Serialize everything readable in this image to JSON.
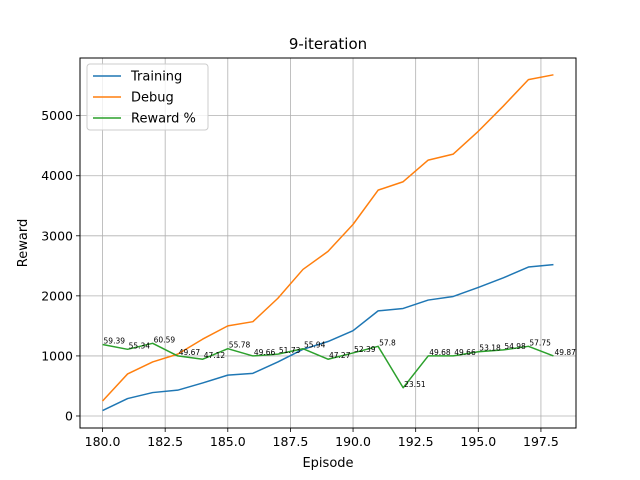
{
  "chart_data": {
    "type": "line",
    "title": "9-iteration",
    "xlabel": "Episode",
    "ylabel": "Reward",
    "xlim": [
      179.1,
      198.9
    ],
    "ylim": [
      -200,
      5960
    ],
    "xticks": [
      180,
      182.5,
      185,
      187.5,
      190,
      192.5,
      195,
      197.5
    ],
    "xtick_labels": [
      "180.0",
      "182.5",
      "185.0",
      "187.5",
      "190.0",
      "192.5",
      "195.0",
      "197.5"
    ],
    "yticks": [
      0,
      1000,
      2000,
      3000,
      4000,
      5000
    ],
    "ytick_labels": [
      "0",
      "1000",
      "2000",
      "3000",
      "4000",
      "5000"
    ],
    "grid": true,
    "legend_position": "top-left",
    "x": [
      180,
      181,
      182,
      183,
      184,
      185,
      186,
      187,
      188,
      189,
      190,
      191,
      192,
      193,
      194,
      195,
      196,
      197,
      198
    ],
    "series": [
      {
        "name": "Training",
        "color": "#1f77b4",
        "values": [
          90,
          290,
          390,
          430,
          550,
          680,
          710,
          900,
          1110,
          1240,
          1420,
          1750,
          1790,
          1930,
          1990,
          2140,
          2300,
          2480,
          2520
        ]
      },
      {
        "name": "Debug",
        "color": "#ff7f0e",
        "values": [
          250,
          700,
          900,
          1030,
          1280,
          1500,
          1570,
          1960,
          2440,
          2740,
          3190,
          3760,
          3900,
          4260,
          4360,
          4740,
          5160,
          5600,
          5680
        ]
      },
      {
        "name": "Reward %",
        "color": "#2ca02c",
        "values": [
          1190,
          1110,
          1210,
          1000,
          945,
          1120,
          1000,
          1030,
          1120,
          945,
          1050,
          1160,
          470,
          1000,
          1000,
          1070,
          1100,
          1160,
          1000
        ],
        "labels": [
          "59.39",
          "55.34",
          "60.59",
          "49.67",
          "47.12",
          "55.78",
          "49.66",
          "51.73",
          "55.94",
          "47.27",
          "52.39",
          "57.8",
          "23.51",
          "49.68",
          "49.66",
          "53.18",
          "54.98",
          "57.75",
          "49.87"
        ]
      }
    ]
  }
}
